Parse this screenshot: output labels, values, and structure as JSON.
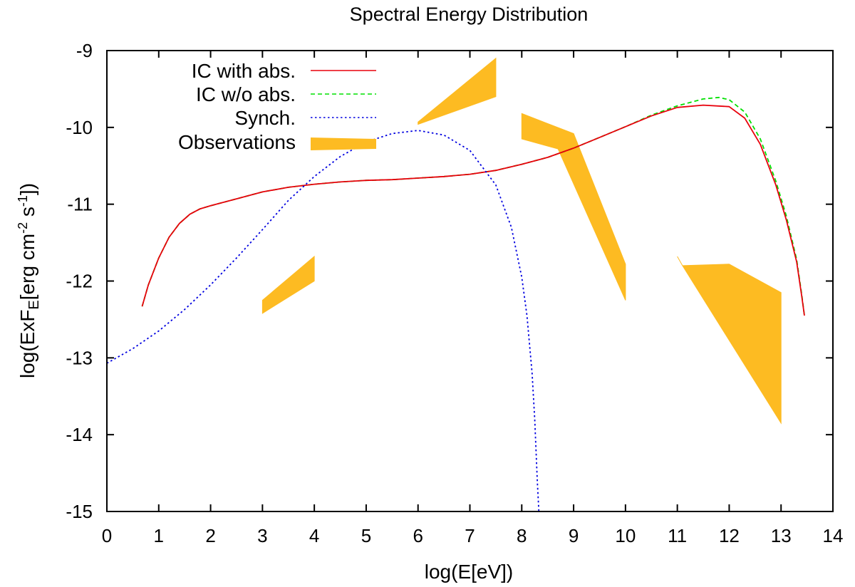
{
  "chart_data": {
    "type": "line",
    "title": "Spectral Energy Distribution",
    "xlabel": "log(E[eV])",
    "ylabel": {
      "prefix": "log(ExF",
      "sub": "E",
      "mid1": "[erg cm",
      "sup1": "-2",
      "mid2": " s",
      "sup2": "-1",
      "suffix": "])"
    },
    "xlim": [
      0,
      14
    ],
    "ylim": [
      -15,
      -9
    ],
    "xticks": [
      0,
      1,
      2,
      3,
      4,
      5,
      6,
      7,
      8,
      9,
      10,
      11,
      12,
      13,
      14
    ],
    "yticks": [
      -15,
      -14,
      -13,
      -12,
      -11,
      -10,
      -9
    ],
    "legend_position": "top-left",
    "series": [
      {
        "name": "IC with abs.",
        "color": "#e8000b",
        "dash": "solid",
        "points": [
          [
            0.68,
            -12.33
          ],
          [
            0.8,
            -12.05
          ],
          [
            1.0,
            -11.7
          ],
          [
            1.2,
            -11.43
          ],
          [
            1.4,
            -11.25
          ],
          [
            1.6,
            -11.13
          ],
          [
            1.8,
            -11.06
          ],
          [
            2.0,
            -11.02
          ],
          [
            2.5,
            -10.93
          ],
          [
            3.0,
            -10.84
          ],
          [
            3.5,
            -10.78
          ],
          [
            4.0,
            -10.74
          ],
          [
            4.5,
            -10.71
          ],
          [
            5.0,
            -10.69
          ],
          [
            5.5,
            -10.68
          ],
          [
            6.0,
            -10.66
          ],
          [
            6.5,
            -10.64
          ],
          [
            7.0,
            -10.61
          ],
          [
            7.5,
            -10.56
          ],
          [
            8.0,
            -10.48
          ],
          [
            8.5,
            -10.39
          ],
          [
            9.0,
            -10.27
          ],
          [
            9.5,
            -10.13
          ],
          [
            10.0,
            -9.99
          ],
          [
            10.5,
            -9.85
          ],
          [
            11.0,
            -9.74
          ],
          [
            11.5,
            -9.71
          ],
          [
            12.0,
            -9.73
          ],
          [
            12.3,
            -9.88
          ],
          [
            12.6,
            -10.22
          ],
          [
            12.9,
            -10.75
          ],
          [
            13.1,
            -11.2
          ],
          [
            13.3,
            -11.75
          ],
          [
            13.4,
            -12.2
          ],
          [
            13.45,
            -12.45
          ]
        ]
      },
      {
        "name": "IC w/o abs.",
        "color": "#00e000",
        "dash": "dashed",
        "points": [
          [
            0.68,
            -12.33
          ],
          [
            0.8,
            -12.05
          ],
          [
            1.0,
            -11.7
          ],
          [
            1.2,
            -11.43
          ],
          [
            1.4,
            -11.25
          ],
          [
            1.6,
            -11.13
          ],
          [
            1.8,
            -11.06
          ],
          [
            2.0,
            -11.02
          ],
          [
            2.5,
            -10.93
          ],
          [
            3.0,
            -10.84
          ],
          [
            3.5,
            -10.78
          ],
          [
            4.0,
            -10.74
          ],
          [
            4.5,
            -10.71
          ],
          [
            5.0,
            -10.69
          ],
          [
            5.5,
            -10.68
          ],
          [
            6.0,
            -10.66
          ],
          [
            6.5,
            -10.64
          ],
          [
            7.0,
            -10.61
          ],
          [
            7.5,
            -10.56
          ],
          [
            8.0,
            -10.48
          ],
          [
            8.5,
            -10.39
          ],
          [
            9.0,
            -10.27
          ],
          [
            9.5,
            -10.13
          ],
          [
            10.0,
            -9.99
          ],
          [
            10.5,
            -9.84
          ],
          [
            11.0,
            -9.72
          ],
          [
            11.5,
            -9.63
          ],
          [
            11.8,
            -9.61
          ],
          [
            12.0,
            -9.64
          ],
          [
            12.3,
            -9.8
          ],
          [
            12.6,
            -10.15
          ],
          [
            12.9,
            -10.7
          ],
          [
            13.1,
            -11.15
          ],
          [
            13.3,
            -11.72
          ],
          [
            13.4,
            -12.18
          ],
          [
            13.45,
            -12.45
          ]
        ]
      },
      {
        "name": "Synch.",
        "color": "#0000e0",
        "dash": "dotted",
        "points": [
          [
            0.0,
            -13.07
          ],
          [
            0.5,
            -12.88
          ],
          [
            1.0,
            -12.65
          ],
          [
            1.5,
            -12.37
          ],
          [
            2.0,
            -12.05
          ],
          [
            2.5,
            -11.7
          ],
          [
            3.0,
            -11.33
          ],
          [
            3.5,
            -10.95
          ],
          [
            4.0,
            -10.64
          ],
          [
            4.5,
            -10.38
          ],
          [
            5.0,
            -10.19
          ],
          [
            5.5,
            -10.08
          ],
          [
            6.0,
            -10.04
          ],
          [
            6.5,
            -10.1
          ],
          [
            7.0,
            -10.3
          ],
          [
            7.5,
            -10.75
          ],
          [
            7.8,
            -11.3
          ],
          [
            8.0,
            -11.95
          ],
          [
            8.1,
            -12.45
          ],
          [
            8.2,
            -13.2
          ],
          [
            8.25,
            -13.8
          ],
          [
            8.3,
            -14.6
          ],
          [
            8.33,
            -15.0
          ]
        ]
      }
    ],
    "observations": {
      "name": "Observations",
      "color": "#fdbb22",
      "regions": [
        [
          [
            3.0,
            -12.25
          ],
          [
            4.0,
            -11.68
          ],
          [
            4.0,
            -12.0
          ],
          [
            3.0,
            -12.42
          ]
        ],
        [
          [
            6.0,
            -9.93
          ],
          [
            7.5,
            -9.1
          ],
          [
            7.5,
            -9.6
          ],
          [
            6.0,
            -9.96
          ]
        ],
        [
          [
            8.0,
            -9.82
          ],
          [
            9.0,
            -10.08
          ],
          [
            10.0,
            -11.78
          ],
          [
            10.0,
            -12.25
          ],
          [
            8.7,
            -10.28
          ],
          [
            8.0,
            -10.15
          ]
        ],
        [
          [
            11.0,
            -11.68
          ],
          [
            11.1,
            -11.8
          ],
          [
            12.0,
            -11.78
          ],
          [
            13.0,
            -12.15
          ],
          [
            13.0,
            -13.85
          ],
          [
            11.1,
            -11.8
          ]
        ]
      ]
    }
  }
}
